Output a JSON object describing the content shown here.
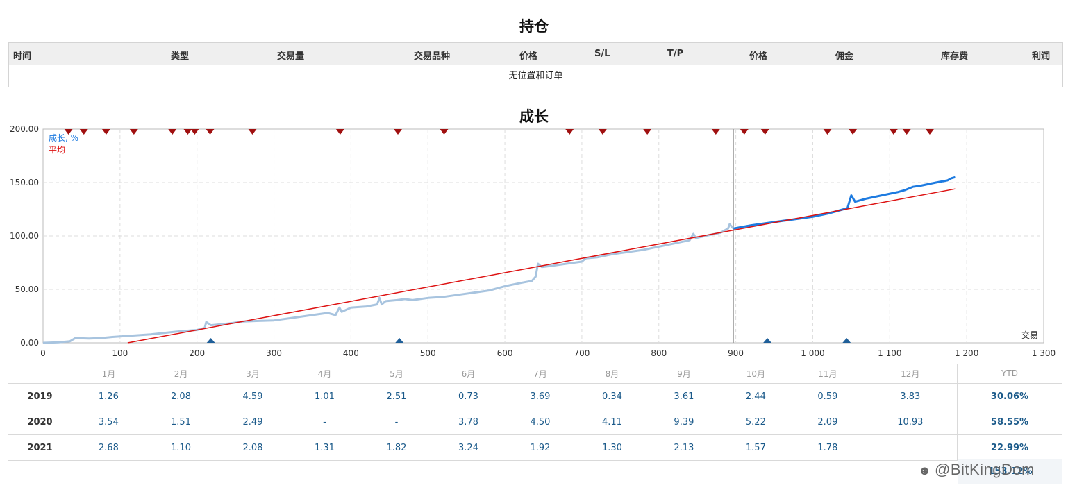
{
  "positions_section": {
    "title": "持仓",
    "columns": [
      "时间",
      "类型",
      "交易量",
      "交易品种",
      "价格",
      "S/L",
      "T/P",
      "价格",
      "佣金",
      "库存费",
      "利润"
    ],
    "empty_message": "无位置和订单"
  },
  "growth_section": {
    "title": "成长"
  },
  "chart_data": {
    "type": "line",
    "title": "成长",
    "xlabel": "交易",
    "ylabel": "",
    "xlim": [
      0,
      1300
    ],
    "ylim": [
      0,
      200
    ],
    "x_ticks": [
      "0",
      "100",
      "200",
      "300",
      "400",
      "500",
      "600",
      "700",
      "800",
      "900",
      "1 000",
      "1 100",
      "1 200",
      "1 300"
    ],
    "y_ticks": [
      "0.00",
      "50.00",
      "100.00",
      "150.00",
      "200.00"
    ],
    "grid": true,
    "legend_position": "top-left",
    "split_x": 897,
    "series": [
      {
        "name": "成长, %",
        "color": "#1e7be0",
        "history_color": "#a8c4df",
        "points": [
          [
            0,
            0
          ],
          [
            20,
            0.5
          ],
          [
            35,
            1.5
          ],
          [
            42,
            4.5
          ],
          [
            60,
            4
          ],
          [
            75,
            4.5
          ],
          [
            90,
            5.5
          ],
          [
            100,
            6
          ],
          [
            120,
            7
          ],
          [
            140,
            8
          ],
          [
            160,
            9.5
          ],
          [
            180,
            11
          ],
          [
            200,
            12
          ],
          [
            210,
            14
          ],
          [
            212,
            19.5
          ],
          [
            218,
            16.5
          ],
          [
            240,
            18
          ],
          [
            260,
            20
          ],
          [
            280,
            20.5
          ],
          [
            300,
            21
          ],
          [
            320,
            23
          ],
          [
            340,
            25
          ],
          [
            360,
            27
          ],
          [
            370,
            28
          ],
          [
            380,
            26
          ],
          [
            385,
            33
          ],
          [
            388,
            29
          ],
          [
            400,
            33
          ],
          [
            420,
            34
          ],
          [
            440,
            36
          ],
          [
            434,
            36
          ],
          [
            437,
            42
          ],
          [
            445,
            39
          ],
          [
            460,
            40
          ],
          [
            470,
            41
          ],
          [
            480,
            40
          ],
          [
            500,
            42
          ],
          [
            520,
            43
          ],
          [
            540,
            45
          ],
          [
            560,
            47
          ],
          [
            580,
            49
          ],
          [
            600,
            53
          ],
          [
            620,
            56
          ],
          [
            635,
            58
          ],
          [
            640,
            62
          ],
          [
            643,
            74
          ],
          [
            648,
            71
          ],
          [
            660,
            72
          ],
          [
            680,
            74
          ],
          [
            700,
            76
          ],
          [
            705,
            79
          ],
          [
            720,
            80
          ],
          [
            740,
            83
          ],
          [
            760,
            85
          ],
          [
            780,
            87
          ],
          [
            800,
            90
          ],
          [
            820,
            93
          ],
          [
            840,
            96
          ],
          [
            845,
            102
          ],
          [
            848,
            98
          ],
          [
            860,
            100
          ],
          [
            880,
            103
          ],
          [
            890,
            107
          ],
          [
            892,
            111
          ],
          [
            897,
            107
          ],
          [
            920,
            110
          ],
          [
            940,
            112
          ],
          [
            960,
            114
          ],
          [
            980,
            116
          ],
          [
            1000,
            118
          ],
          [
            1020,
            121
          ],
          [
            1040,
            125
          ],
          [
            1045,
            126
          ],
          [
            1050,
            138
          ],
          [
            1055,
            132
          ],
          [
            1070,
            135
          ],
          [
            1090,
            138
          ],
          [
            1110,
            141
          ],
          [
            1120,
            143
          ],
          [
            1130,
            146
          ],
          [
            1140,
            147
          ],
          [
            1160,
            150
          ],
          [
            1175,
            152
          ],
          [
            1180,
            154
          ],
          [
            1185,
            155
          ]
        ]
      },
      {
        "name": "平均",
        "color": "#dd1111",
        "points": [
          [
            110,
            0
          ],
          [
            1185,
            144
          ]
        ]
      }
    ],
    "markers_top": [
      33,
      53,
      82,
      118,
      168,
      188,
      197,
      217,
      272,
      386,
      461,
      521,
      684,
      727,
      785,
      874,
      911,
      938,
      1019,
      1052,
      1105,
      1122,
      1152
    ],
    "markers_bottom": [
      218,
      463,
      941,
      1044
    ],
    "marker_top_color": "#a01010",
    "marker_bottom_color": "#1f5f99"
  },
  "monthly_table": {
    "months": [
      "1月",
      "2月",
      "3月",
      "4月",
      "5月",
      "6月",
      "7月",
      "8月",
      "9月",
      "10月",
      "11月",
      "12月"
    ],
    "ytd_label": "YTD",
    "rows": [
      {
        "year": "2019",
        "values": [
          "1.26",
          "2.08",
          "4.59",
          "1.01",
          "2.51",
          "0.73",
          "3.69",
          "0.34",
          "3.61",
          "2.44",
          "0.59",
          "3.83"
        ],
        "ytd": "30.06%"
      },
      {
        "year": "2020",
        "values": [
          "3.54",
          "1.51",
          "2.49",
          "-",
          "-",
          "3.78",
          "4.50",
          "4.11",
          "9.39",
          "5.22",
          "2.09",
          "10.93"
        ],
        "ytd": "58.55%"
      },
      {
        "year": "2021",
        "values": [
          "2.68",
          "1.10",
          "2.08",
          "1.31",
          "1.82",
          "3.24",
          "1.92",
          "1.30",
          "2.13",
          "1.57",
          "1.78",
          ""
        ],
        "ytd": "22.99%"
      }
    ],
    "total": "153.12%"
  },
  "watermark": {
    "text": "@BitKingDom",
    "icon": "wechat-icon"
  }
}
